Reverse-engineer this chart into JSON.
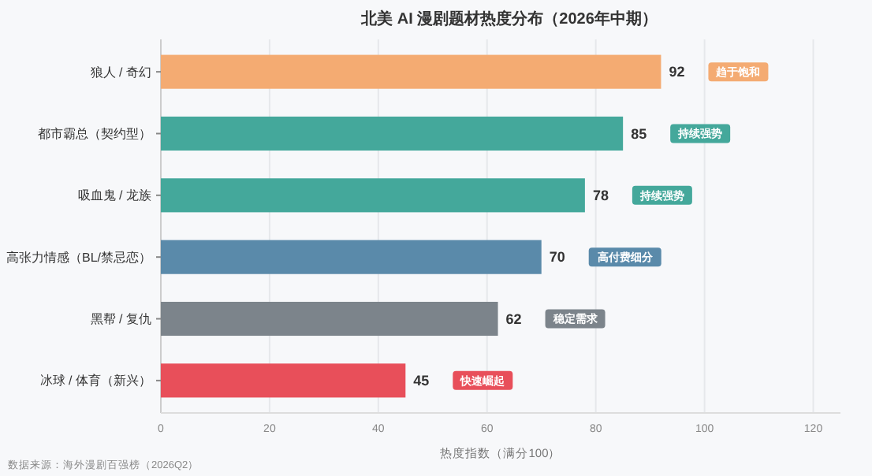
{
  "chart_data": {
    "type": "bar",
    "orientation": "horizontal",
    "title": "北美 AI 漫剧题材热度分布（2026年中期）",
    "xlabel": "热度指数（满分100）",
    "categories": [
      "狼人 / 奇幻",
      "都市霸总（契约型）",
      "吸血鬼 / 龙族",
      "高张力情感（BL/禁忌恋）",
      "黑帮 / 复仇",
      "冰球 / 体育（新兴）"
    ],
    "values": [
      92,
      85,
      78,
      70,
      62,
      45
    ],
    "colors": [
      "#f4ab72",
      "#44a89b",
      "#44a89b",
      "#5a8aaa",
      "#7c848b",
      "#e84f5a"
    ],
    "xlim": [
      0,
      125
    ],
    "xticks": [
      0,
      20,
      40,
      60,
      80,
      100,
      120
    ],
    "grid": "x",
    "data_labels": true,
    "annotations": [
      "趋于饱和",
      "持续强势",
      "持续强势",
      "高付费细分",
      "稳定需求",
      "快速崛起",
      "数据来源：海外漫剧百强榜（2026Q2）"
    ]
  }
}
